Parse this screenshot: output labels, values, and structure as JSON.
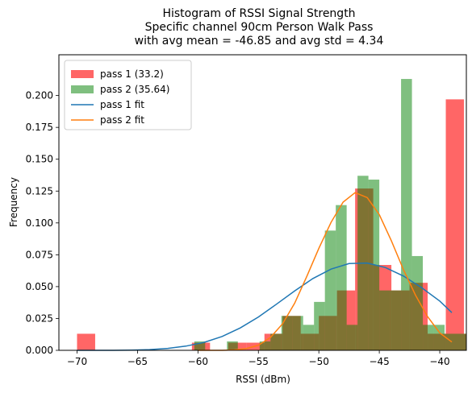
{
  "chart_data": {
    "type": "bar",
    "title_lines": [
      "Histogram of RSSI Signal Strength",
      "Specific channel 90cm Person Walk Pass",
      "  with avg mean = -46.85 and avg std = 4.34"
    ],
    "xlabel": "RSSI (dBm)",
    "ylabel": "Frequency",
    "xlim": [
      -71.5,
      -37.8
    ],
    "ylim": [
      0,
      0.232
    ],
    "xticks": [
      -70,
      -65,
      -60,
      -55,
      -50,
      -45,
      -40
    ],
    "xtick_labels": [
      "−70",
      "−65",
      "−60",
      "−55",
      "−50",
      "−45",
      "−40"
    ],
    "yticks": [
      0,
      0.025,
      0.05,
      0.075,
      0.1,
      0.125,
      0.15,
      0.175,
      0.2
    ],
    "ytick_labels": [
      "0.000",
      "0.025",
      "0.050",
      "0.075",
      "0.100",
      "0.125",
      "0.150",
      "0.175",
      "0.200"
    ],
    "legend_position": "upper-left",
    "series": [
      {
        "name": "pass 1 (33.2)",
        "kind": "histogram",
        "color": "#ff0000",
        "alpha": 0.6,
        "bins": [
          {
            "x0": -70.0,
            "x1": -68.5,
            "value": 0.013
          },
          {
            "x0": -60.5,
            "x1": -59.0,
            "value": 0.006
          },
          {
            "x0": -57.5,
            "x1": -56.0,
            "value": 0.006
          },
          {
            "x0": -56.0,
            "x1": -54.5,
            "value": 0.006
          },
          {
            "x0": -54.5,
            "x1": -53.0,
            "value": 0.013
          },
          {
            "x0": -53.0,
            "x1": -51.5,
            "value": 0.027
          },
          {
            "x0": -51.5,
            "x1": -50.0,
            "value": 0.013
          },
          {
            "x0": -50.0,
            "x1": -48.5,
            "value": 0.027
          },
          {
            "x0": -48.5,
            "x1": -47.0,
            "value": 0.047
          },
          {
            "x0": -47.0,
            "x1": -45.5,
            "value": 0.127
          },
          {
            "x0": -45.5,
            "x1": -44.0,
            "value": 0.067
          },
          {
            "x0": -44.0,
            "x1": -42.5,
            "value": 0.047
          },
          {
            "x0": -42.5,
            "x1": -41.0,
            "value": 0.053
          },
          {
            "x0": -41.0,
            "x1": -39.5,
            "value": 0.013
          },
          {
            "x0": -39.5,
            "x1": -38.0,
            "value": 0.197
          },
          {
            "x0": -38.0,
            "x1": -36.5,
            "value": 0.013
          }
        ]
      },
      {
        "name": "pass 2 (35.64)",
        "kind": "histogram",
        "color": "#008000",
        "alpha": 0.5,
        "bins": [
          {
            "x0": -60.3,
            "x1": -59.4,
            "value": 0.007
          },
          {
            "x0": -57.6,
            "x1": -56.7,
            "value": 0.007
          },
          {
            "x0": -54.9,
            "x1": -54.0,
            "value": 0.007
          },
          {
            "x0": -54.0,
            "x1": -53.1,
            "value": 0.013
          },
          {
            "x0": -53.1,
            "x1": -52.2,
            "value": 0.027
          },
          {
            "x0": -52.2,
            "x1": -51.3,
            "value": 0.027
          },
          {
            "x0": -51.3,
            "x1": -50.4,
            "value": 0.02
          },
          {
            "x0": -50.4,
            "x1": -49.5,
            "value": 0.038
          },
          {
            "x0": -49.5,
            "x1": -48.6,
            "value": 0.094
          },
          {
            "x0": -48.6,
            "x1": -47.7,
            "value": 0.114
          },
          {
            "x0": -47.7,
            "x1": -46.8,
            "value": 0.02
          },
          {
            "x0": -46.8,
            "x1": -45.9,
            "value": 0.137
          },
          {
            "x0": -45.9,
            "x1": -45.0,
            "value": 0.134
          },
          {
            "x0": -45.0,
            "x1": -44.1,
            "value": 0.047
          },
          {
            "x0": -44.1,
            "x1": -43.2,
            "value": 0.047
          },
          {
            "x0": -43.2,
            "x1": -42.3,
            "value": 0.213
          },
          {
            "x0": -42.3,
            "x1": -41.4,
            "value": 0.074
          },
          {
            "x0": -41.4,
            "x1": -40.5,
            "value": 0.02
          },
          {
            "x0": -40.5,
            "x1": -39.6,
            "value": 0.02
          },
          {
            "x0": -39.6,
            "x1": -38.7,
            "value": 0.013
          },
          {
            "x0": -38.7,
            "x1": -37.8,
            "value": 0.013
          }
        ]
      },
      {
        "name": "pass 1 fit",
        "kind": "line",
        "color": "#1f77b4",
        "x": [
          -70.0,
          -68.5,
          -67.0,
          -65.5,
          -64.0,
          -62.5,
          -61.0,
          -59.5,
          -58.0,
          -56.5,
          -55.0,
          -53.5,
          -52.0,
          -50.5,
          -49.0,
          -47.5,
          -46.0,
          -44.5,
          -43.0,
          -41.5,
          -40.0,
          -39.0
        ],
        "y": [
          0.0,
          0.0,
          0.0,
          0.0002,
          0.0006,
          0.0015,
          0.0033,
          0.0062,
          0.0109,
          0.0176,
          0.0262,
          0.0362,
          0.0466,
          0.0563,
          0.0637,
          0.0681,
          0.0685,
          0.065,
          0.0583,
          0.0491,
          0.0387,
          0.0296
        ]
      },
      {
        "name": "pass 2 fit",
        "kind": "line",
        "color": "#ff7f0e",
        "x": [
          -60.0,
          -59.0,
          -58.0,
          -57.0,
          -56.0,
          -55.0,
          -54.0,
          -53.0,
          -52.0,
          -51.0,
          -50.0,
          -49.0,
          -48.0,
          -47.0,
          -46.0,
          -45.0,
          -44.0,
          -43.0,
          -42.0,
          -41.0,
          -40.0,
          -39.0
        ],
        "y": [
          0.0,
          0.0,
          0.0,
          0.0003,
          0.0013,
          0.004,
          0.0101,
          0.0208,
          0.037,
          0.058,
          0.0801,
          0.1003,
          0.1163,
          0.1238,
          0.1199,
          0.1065,
          0.0859,
          0.0632,
          0.0431,
          0.0264,
          0.0137,
          0.0065
        ]
      }
    ]
  }
}
